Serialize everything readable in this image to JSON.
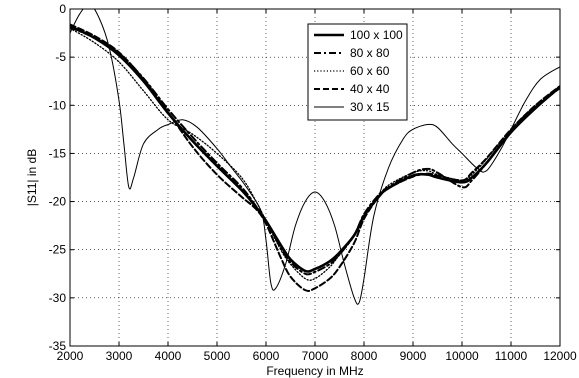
{
  "chart_data": {
    "type": "line",
    "xlabel": "Frequency in MHz",
    "ylabel": "|S11| in dB",
    "xlim": [
      2000,
      12000
    ],
    "ylim": [
      -35,
      0
    ],
    "xticks": [
      "2000",
      "3000",
      "4000",
      "5000",
      "6000",
      "7000",
      "8000",
      "9000",
      "10000",
      "11000",
      "12000"
    ],
    "yticks": [
      "0",
      "-5",
      "-10",
      "-15",
      "-20",
      "-25",
      "-30",
      "-35"
    ],
    "grid": true,
    "legend_position": "top-center",
    "series": [
      {
        "name": "100 x 100",
        "style": "solid-thick",
        "x": [
          2000,
          2500,
          3000,
          3500,
          4000,
          4500,
          5000,
          5500,
          5800,
          6000,
          6300,
          6500,
          6800,
          7000,
          7300,
          7500,
          7800,
          8000,
          8300,
          8500,
          9000,
          9300,
          9500,
          10000,
          10200,
          10500,
          11000,
          11500,
          12000
        ],
        "y": [
          -1.8,
          -3.0,
          -4.8,
          -7.5,
          -10.8,
          -13.7,
          -16.3,
          -18.8,
          -20.6,
          -22.0,
          -24.5,
          -26.0,
          -27.2,
          -27.0,
          -26.2,
          -25.3,
          -23.5,
          -21.5,
          -19.5,
          -18.6,
          -17.3,
          -17.2,
          -17.5,
          -18.0,
          -17.5,
          -16.0,
          -12.8,
          -10.3,
          -8.1
        ]
      },
      {
        "name": "80 x 80",
        "style": "dash-dot",
        "x": [
          2000,
          2500,
          3000,
          3500,
          4000,
          4500,
          5000,
          5500,
          5800,
          6000,
          6300,
          6500,
          6800,
          7000,
          7300,
          7500,
          7800,
          8000,
          8300,
          8500,
          9000,
          9300,
          9500,
          10000,
          10200,
          10500,
          11000,
          11500,
          12000
        ],
        "y": [
          -1.9,
          -3.0,
          -4.6,
          -7.2,
          -10.4,
          -13.3,
          -16.0,
          -18.5,
          -20.5,
          -22.0,
          -24.8,
          -26.3,
          -27.5,
          -27.3,
          -26.5,
          -25.5,
          -23.5,
          -21.3,
          -19.3,
          -18.5,
          -17.0,
          -16.6,
          -17.0,
          -18.5,
          -17.8,
          -16.0,
          -12.7,
          -10.2,
          -8.2
        ]
      },
      {
        "name": "60 x 60",
        "style": "dotted",
        "x": [
          2000,
          2500,
          3000,
          3500,
          4000,
          4500,
          5000,
          5500,
          5800,
          6000,
          6300,
          6500,
          6800,
          7000,
          7300,
          7500,
          7800,
          8000,
          8300,
          8500,
          9000,
          9300,
          9500,
          10000,
          10200,
          10500,
          11000,
          11500,
          12000
        ],
        "y": [
          -2.0,
          -3.5,
          -5.5,
          -8.5,
          -11.5,
          -13.0,
          -15.0,
          -17.5,
          -20.0,
          -22.0,
          -25.0,
          -26.5,
          -28.0,
          -28.0,
          -26.8,
          -25.5,
          -23.5,
          -21.5,
          -19.5,
          -18.3,
          -17.0,
          -16.8,
          -17.2,
          -17.8,
          -17.2,
          -15.6,
          -12.5,
          -10.0,
          -8.0
        ]
      },
      {
        "name": "40 x 40",
        "style": "dashed",
        "x": [
          2000,
          2500,
          3000,
          3500,
          4000,
          4500,
          5000,
          5500,
          5800,
          6000,
          6300,
          6500,
          6800,
          7000,
          7300,
          7500,
          7800,
          8000,
          8300,
          8500,
          9000,
          9300,
          9500,
          10000,
          10200,
          10500,
          11000,
          11500,
          12000
        ],
        "y": [
          -1.6,
          -2.8,
          -4.5,
          -7.3,
          -10.7,
          -14.3,
          -17.2,
          -19.5,
          -20.8,
          -22.3,
          -25.8,
          -27.8,
          -29.2,
          -29.0,
          -28.0,
          -26.8,
          -24.3,
          -21.8,
          -19.5,
          -18.6,
          -17.4,
          -17.1,
          -17.3,
          -17.8,
          -17.0,
          -15.5,
          -12.5,
          -10.0,
          -8.0
        ]
      },
      {
        "name": "30 x 15",
        "style": "solid-thin",
        "x": [
          2000,
          2200,
          2400,
          2600,
          2800,
          3000,
          3100,
          3200,
          3300,
          3500,
          3800,
          4000,
          4300,
          4600,
          5000,
          5300,
          5600,
          5900,
          6000,
          6100,
          6200,
          6400,
          6600,
          6800,
          7000,
          7200,
          7400,
          7600,
          7800,
          7900,
          8000,
          8200,
          8500,
          8800,
          9000,
          9300,
          9500,
          9800,
          10000,
          10300,
          10500,
          10800,
          11000,
          11300,
          11600,
          12000
        ],
        "y": [
          -2.5,
          -0.5,
          0.5,
          -1.0,
          -4.0,
          -9.5,
          -14.0,
          -18.5,
          -17.5,
          -14.0,
          -12.5,
          -12.0,
          -11.5,
          -12.3,
          -14.5,
          -16.5,
          -18.5,
          -21.0,
          -24.0,
          -28.5,
          -29.0,
          -26.5,
          -22.5,
          -20.0,
          -19.0,
          -20.0,
          -22.5,
          -26.5,
          -30.0,
          -30.5,
          -28.0,
          -21.5,
          -16.5,
          -13.5,
          -12.5,
          -12.0,
          -12.3,
          -14.0,
          -15.0,
          -16.5,
          -16.8,
          -14.5,
          -12.5,
          -9.5,
          -7.3,
          -6.0
        ]
      }
    ]
  }
}
